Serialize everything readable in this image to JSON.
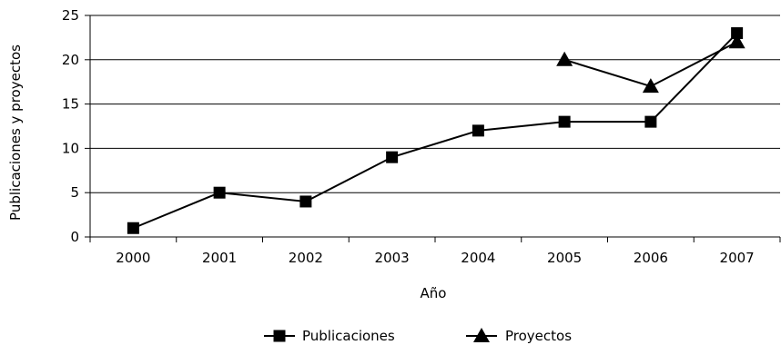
{
  "chart_data": {
    "type": "line",
    "title": "",
    "xlabel": "Año",
    "ylabel": "Publicaciones y proyectos",
    "categories": [
      "2000",
      "2001",
      "2002",
      "2003",
      "2004",
      "2005",
      "2006",
      "2007"
    ],
    "ylim": [
      0,
      25
    ],
    "yticks": [
      "0",
      "5",
      "10",
      "15",
      "20",
      "25"
    ],
    "grid": true,
    "legend_position": "bottom",
    "series": [
      {
        "name": "Publicaciones",
        "marker": "square",
        "color": "#000000",
        "values": [
          1,
          5,
          4,
          9,
          12,
          13,
          13,
          23
        ]
      },
      {
        "name": "Proyectos",
        "marker": "triangle",
        "color": "#000000",
        "values": [
          null,
          null,
          null,
          null,
          null,
          20,
          17,
          22
        ]
      }
    ]
  }
}
